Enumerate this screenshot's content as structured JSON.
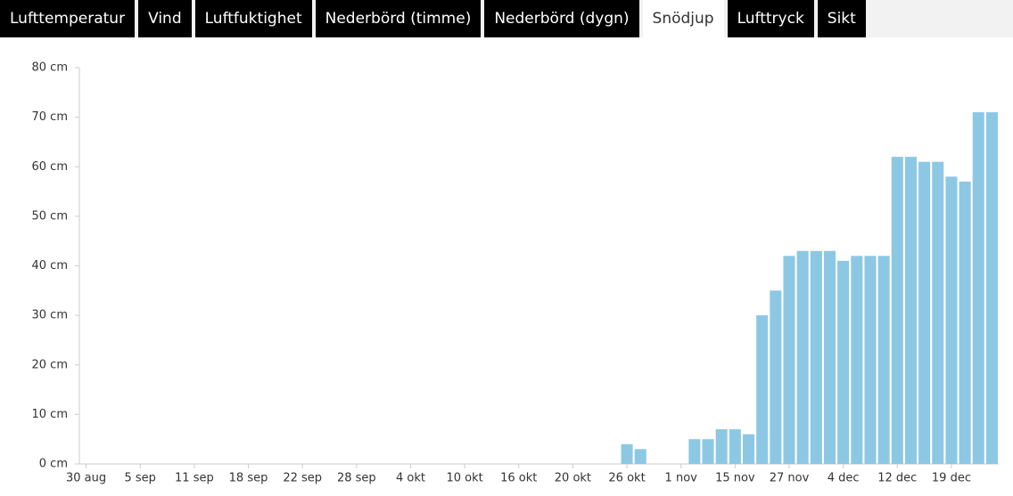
{
  "tabs": [
    {
      "label": "Lufttemperatur"
    },
    {
      "label": "Vind"
    },
    {
      "label": "Luftfuktighet"
    },
    {
      "label": "Nederbörd (timme)"
    },
    {
      "label": "Nederbörd (dygn)"
    },
    {
      "label": "Snödjup",
      "active": true
    },
    {
      "label": "Lufttryck"
    },
    {
      "label": "Sikt"
    }
  ],
  "chart_data": {
    "type": "bar",
    "color": "#8cc8e4",
    "categories": [
      "30 aug",
      null,
      null,
      null,
      "5 sep",
      null,
      null,
      null,
      "11 sep",
      null,
      null,
      null,
      "18 sep",
      null,
      null,
      null,
      "22 sep",
      null,
      null,
      null,
      "28 sep",
      null,
      null,
      null,
      "4 okt",
      null,
      null,
      null,
      "10 okt",
      null,
      null,
      null,
      "16 okt",
      null,
      null,
      null,
      "20 okt",
      null,
      null,
      null,
      "26 okt",
      null,
      null,
      null,
      "1 nov",
      null,
      null,
      null,
      "15 nov",
      null,
      null,
      null,
      "27 nov",
      null,
      null,
      null,
      "4 dec",
      null,
      null,
      null,
      "12 dec",
      null,
      null,
      null,
      "19 dec",
      null,
      null,
      null
    ],
    "values": [
      0,
      0,
      0,
      0,
      0,
      0,
      0,
      0,
      0,
      0,
      0,
      0,
      0,
      0,
      0,
      0,
      0,
      0,
      0,
      0,
      0,
      0,
      0,
      0,
      0,
      0,
      0,
      0,
      0,
      0,
      0,
      0,
      0,
      0,
      0,
      0,
      0,
      0,
      0,
      0,
      4,
      3,
      0,
      0,
      0,
      5,
      5,
      7,
      7,
      6,
      30,
      35,
      42,
      43,
      43,
      43,
      41,
      42,
      42,
      42,
      62,
      62,
      61,
      61,
      58,
      57,
      71,
      71
    ],
    "ylim": [
      0,
      80
    ],
    "yticks": [
      {
        "value": 0,
        "label": "0 cm"
      },
      {
        "value": 10,
        "label": "10 cm"
      },
      {
        "value": 20,
        "label": "20 cm"
      },
      {
        "value": 30,
        "label": "30 cm"
      },
      {
        "value": 40,
        "label": "40 cm"
      },
      {
        "value": 50,
        "label": "50 cm"
      },
      {
        "value": 60,
        "label": "60 cm"
      },
      {
        "value": 70,
        "label": "70 cm"
      },
      {
        "value": 80,
        "label": "80 cm"
      }
    ]
  }
}
